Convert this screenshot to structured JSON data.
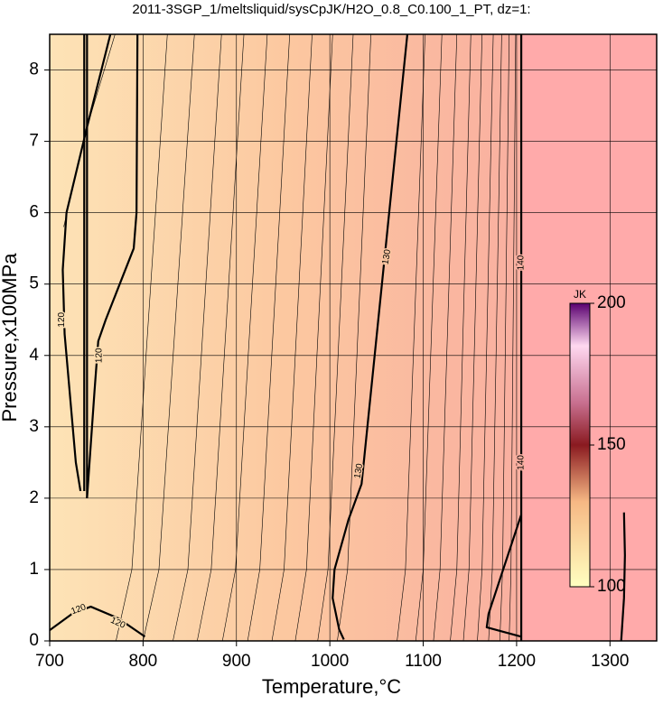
{
  "chart_data": {
    "type": "contour",
    "title": "2011-3SGP_1/meltsliquid/sysCpJK/H2O_0.8_C0.100_1_PT, dz=1:",
    "xlabel": "Temperature,°C",
    "ylabel": "Pressure,x100MPa",
    "xlim": [
      700,
      1350
    ],
    "xticks": [
      700,
      800,
      900,
      1000,
      1100,
      1200,
      1300
    ],
    "ylim": [
      0,
      8.5
    ],
    "yticks": [
      0,
      1,
      2,
      3,
      4,
      5,
      6,
      7,
      8
    ],
    "grid": true,
    "contours": [
      {
        "x": [
          771,
          788,
          826
        ],
        "y": [
          0,
          1,
          8.5
        ]
      },
      {
        "x": [
          800,
          817,
          855
        ],
        "y": [
          0,
          1,
          8.5
        ]
      },
      {
        "x": [
          832,
          848,
          884
        ],
        "y": [
          0,
          1,
          8.5
        ]
      },
      {
        "x": [
          858,
          873,
          908
        ],
        "y": [
          0,
          1,
          8.5
        ]
      },
      {
        "x": [
          885,
          899,
          933
        ],
        "y": [
          0,
          1,
          8.5
        ]
      },
      {
        "x": [
          912,
          925,
          957
        ],
        "y": [
          0,
          1,
          8.5
        ]
      },
      {
        "x": [
          938,
          951,
          981
        ],
        "y": [
          0,
          1,
          8.5
        ]
      },
      {
        "x": [
          963,
          975,
          1003
        ],
        "y": [
          0,
          1,
          8.5
        ]
      },
      {
        "x": [
          987,
          998,
          1025
        ],
        "y": [
          0,
          1,
          8.5
        ]
      },
      {
        "x": [
          1008,
          1019,
          1044
        ],
        "y": [
          0,
          1,
          8.5
        ]
      },
      {
        "x": [
          1072,
          1081,
          1102
        ],
        "y": [
          0,
          1,
          8.5
        ]
      },
      {
        "x": [
          1092,
          1100,
          1120
        ],
        "y": [
          0,
          1,
          8.5
        ]
      },
      {
        "x": [
          1111,
          1118,
          1136
        ],
        "y": [
          0,
          1,
          8.5
        ]
      },
      {
        "x": [
          1129,
          1136,
          1151
        ],
        "y": [
          0,
          1,
          8.5
        ]
      },
      {
        "x": [
          1143,
          1149,
          1163
        ],
        "y": [
          0,
          1,
          8.5
        ]
      },
      {
        "x": [
          1158,
          1163,
          1175
        ],
        "y": [
          0,
          1,
          8.5
        ]
      },
      {
        "x": [
          1170,
          1174,
          1184
        ],
        "y": [
          0,
          1,
          8.5
        ]
      },
      {
        "x": [
          1182,
          1185,
          1192
        ],
        "y": [
          0,
          1,
          8.5
        ]
      },
      {
        "x": [
          1192,
          1194,
          1199
        ],
        "y": [
          0,
          1,
          8.5
        ]
      },
      {
        "x": [
          715,
          740,
          770
        ],
        "y": [
          5.8,
          7.2,
          8.5
        ]
      }
    ],
    "bold_contours": [
      {
        "x": [
          740,
          740
        ],
        "y": [
          2.0,
          8.5
        ]
      },
      {
        "x": [
          737,
          737
        ],
        "y": [
          2.1,
          8.5
        ]
      },
      {
        "x": [
          733,
          728,
          716,
          714,
          718,
          740,
          765
        ],
        "y": [
          2.1,
          2.5,
          4.3,
          5.2,
          6.0,
          7.2,
          8.5
        ]
      },
      {
        "x": [
          740,
          748,
          752,
          760,
          790,
          793,
          794
        ],
        "y": [
          2.0,
          3.5,
          4.2,
          4.5,
          5.5,
          6.0,
          8.5
        ]
      },
      {
        "x": [
          700,
          724,
          744,
          773,
          802
        ],
        "y": [
          0.15,
          0.38,
          0.48,
          0.32,
          0.06
        ]
      },
      {
        "x": [
          1015,
          1010,
          1003,
          1005,
          1020,
          1034,
          1083
        ],
        "y": [
          0.02,
          0.16,
          0.6,
          1.0,
          1.7,
          2.2,
          8.5
        ]
      },
      {
        "x": [
          1205,
          1205
        ],
        "y": [
          0,
          8.5
        ]
      },
      {
        "x": [
          1205,
          1168,
          1170,
          1205
        ],
        "y": [
          0.06,
          0.19,
          0.38,
          1.77
        ]
      },
      {
        "x": [
          1312,
          1315,
          1316,
          1315
        ],
        "y": [
          0,
          0.6,
          1.2,
          1.8
        ]
      }
    ],
    "contour_labels": [
      {
        "text": "120",
        "x": 713,
        "y": 4.5
      },
      {
        "text": "120",
        "x": 753,
        "y": 4.0
      },
      {
        "text": "120",
        "x": 731,
        "y": 0.44
      },
      {
        "text": "120",
        "x": 773,
        "y": 0.25
      },
      {
        "text": "130",
        "x": 1031,
        "y": 2.38
      },
      {
        "text": "130",
        "x": 1061,
        "y": 5.38
      },
      {
        "text": "140",
        "x": 1205,
        "y": 5.3
      },
      {
        "text": "140",
        "x": 1205,
        "y": 2.5
      }
    ],
    "colorbar": {
      "label": "JK",
      "lim": [
        100,
        200
      ],
      "ticks": [
        100,
        150,
        200
      ]
    }
  }
}
